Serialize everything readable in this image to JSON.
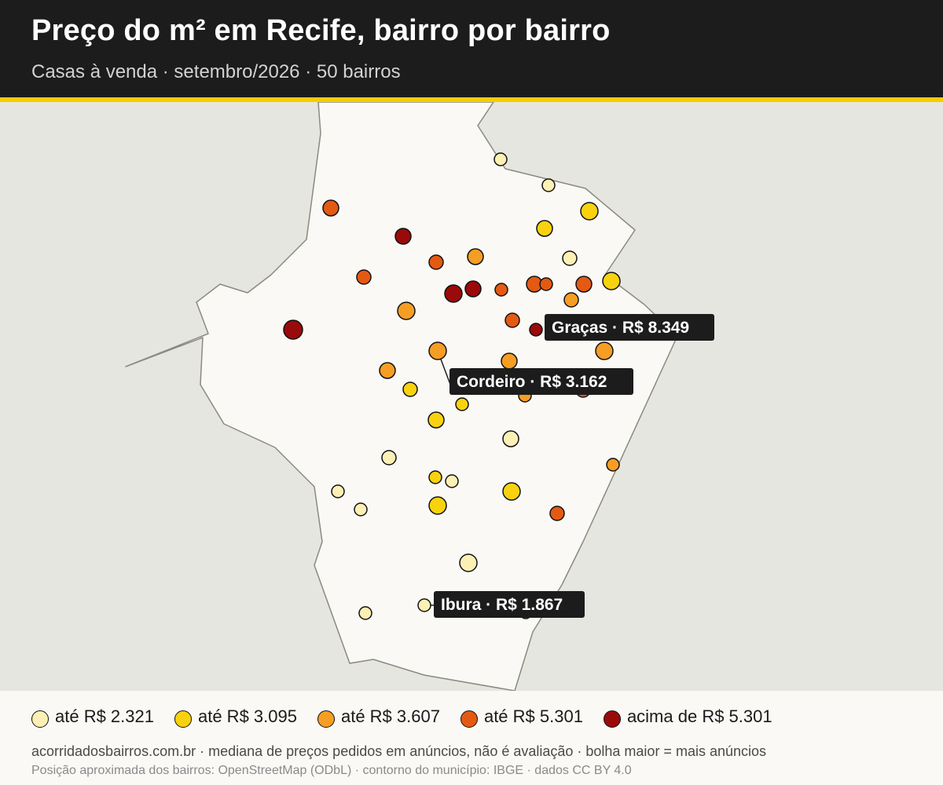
{
  "header": {
    "title": "Preço do m² em Recife, bairro por bairro",
    "subtitle": "Casas à venda · setembro/2026 · 50 bairros"
  },
  "colors": {
    "header_bg": "#1c1c1c",
    "accent": "#f7cc00",
    "map_bg": "#e6e6e0",
    "municipality_fill": "#faf9f6",
    "outline": "#8a8a80",
    "label_bg": "#1c1c1c",
    "label_text": "#ffffff"
  },
  "legend": {
    "items": [
      {
        "label": "até R$ 2.321",
        "color": "#fdf0b5"
      },
      {
        "label": "até R$ 3.095",
        "color": "#f9d20f"
      },
      {
        "label": "até R$ 3.607",
        "color": "#f69d24"
      },
      {
        "label": "até R$ 5.301",
        "color": "#e45a13"
      },
      {
        "label": "acima de R$ 5.301",
        "color": "#9a0a0a"
      }
    ]
  },
  "callouts": [
    {
      "name": "Graças",
      "text": "Graças · R$ 8.349",
      "price": 8349,
      "class": 4
    },
    {
      "name": "Cordeiro",
      "text": "Cordeiro · R$ 3.162",
      "price": 3162,
      "class": 2
    },
    {
      "name": "Ibura",
      "text": "Ibura · R$ 1.867",
      "price": 1867,
      "class": 0
    }
  ],
  "footer": {
    "note": "acorridadosbairros.com.br · mediana de preços pedidos em anúncios, não é avaliação · bolha maior = mais anúncios",
    "credits": "Posição aproximada dos bairros: OpenStreetMap (ODbL) · contorno do município: IBGE · dados CC BY 4.0"
  }
}
